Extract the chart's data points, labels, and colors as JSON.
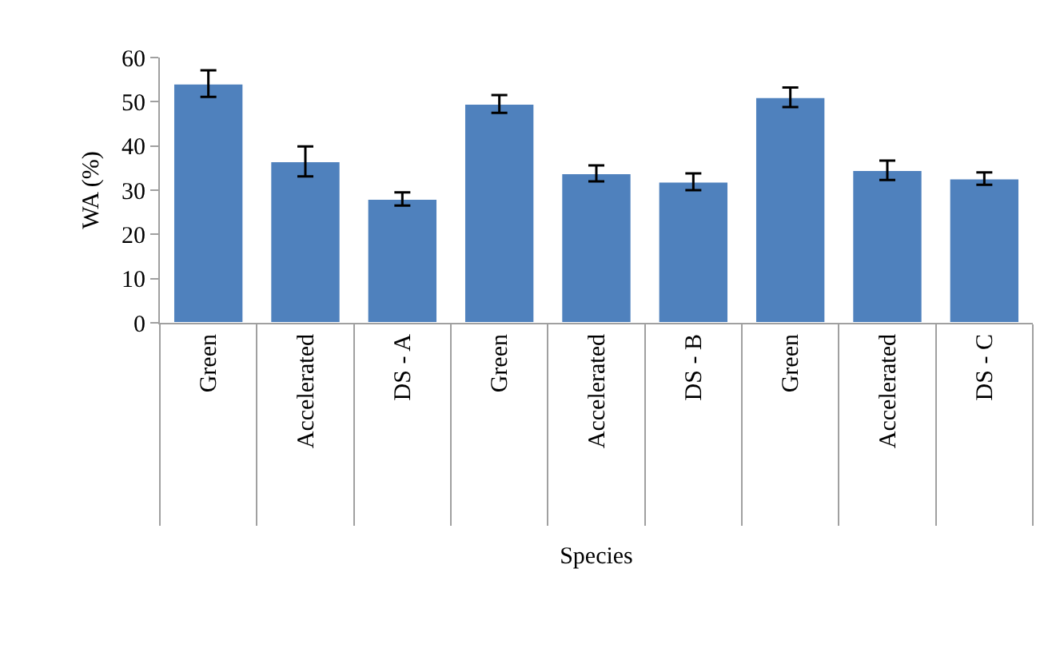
{
  "chart_data": {
    "type": "bar",
    "xlabel": "Species",
    "ylabel": "WA (%)",
    "categories": [
      "Green",
      "Accelerated",
      "DS - A",
      "Green",
      "Accelerated",
      "DS - B",
      "Green",
      "Accelerated",
      "DS - C"
    ],
    "values": [
      54.1,
      36.5,
      28,
      49.5,
      33.8,
      31.9,
      51,
      34.5,
      32.6
    ],
    "errors": [
      3,
      3.4,
      1.5,
      2,
      1.8,
      1.9,
      2.2,
      2.2,
      1.4
    ],
    "color": "#4f81bd",
    "ylim": [
      0,
      60
    ],
    "yticks": [
      0,
      10,
      20,
      30,
      40,
      50,
      60
    ],
    "grid": false,
    "legend": false
  }
}
